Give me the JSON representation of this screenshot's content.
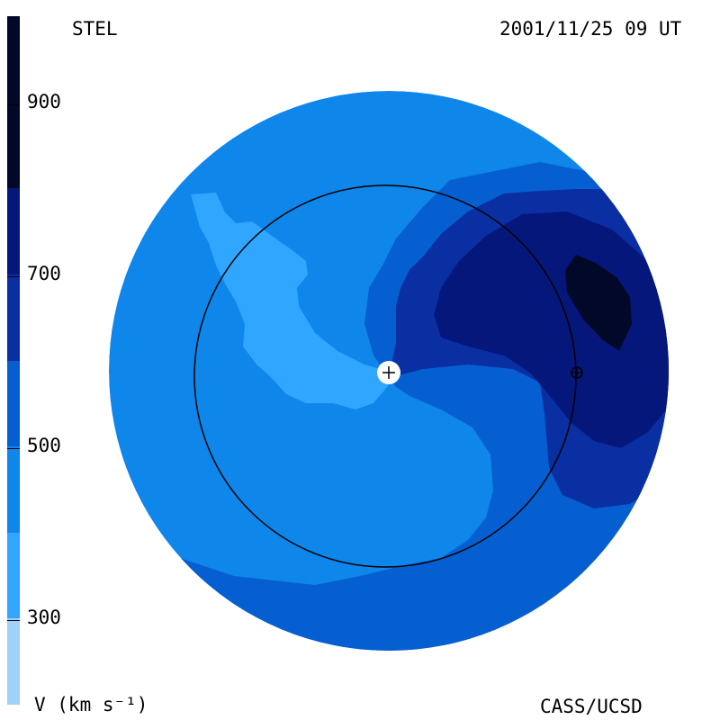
{
  "header": {
    "observatory": "STEL",
    "timestamp": "2001/11/25 09 UT"
  },
  "footer": {
    "unit_label": "V (km s⁻¹)",
    "credit": "CASS/UCSD"
  },
  "colorbar": {
    "tick_labels": [
      "900",
      "700",
      "500",
      "300"
    ],
    "tick_values": [
      900,
      700,
      500,
      300
    ],
    "range": [
      200,
      1000
    ],
    "bands": [
      {
        "from": 200,
        "to": 300,
        "color": "#9dd2fb"
      },
      {
        "from": 300,
        "to": 400,
        "color": "#30a6ff"
      },
      {
        "from": 400,
        "to": 500,
        "color": "#0f86ea"
      },
      {
        "from": 500,
        "to": 600,
        "color": "#065fd0"
      },
      {
        "from": 600,
        "to": 700,
        "color": "#0a2fa3"
      },
      {
        "from": 700,
        "to": 800,
        "color": "#06177c"
      },
      {
        "from": 800,
        "to": 1000,
        "color": "#020928"
      }
    ]
  },
  "chart_data": {
    "type": "heatmap",
    "quantity": "solar wind speed",
    "unit": "km s-1",
    "title": "STEL",
    "date": "2001/11/25 09 UT",
    "projection": "polar view, Sun at center",
    "background_speed_kms": 400,
    "regions": [
      {
        "band": "300-400",
        "description": "slow wind spiral arm"
      },
      {
        "band": "500-600",
        "description": "moderate wind belt and southern arc"
      },
      {
        "band": "600-700",
        "description": "fast wind region"
      },
      {
        "band": "700-800",
        "description": "fast wind core"
      },
      {
        "band": "800-900",
        "description": "fastest wind core"
      }
    ],
    "markers": [
      "Sun (+)",
      "Earth (⊕)"
    ],
    "reference_circle": "Earth orbit"
  }
}
